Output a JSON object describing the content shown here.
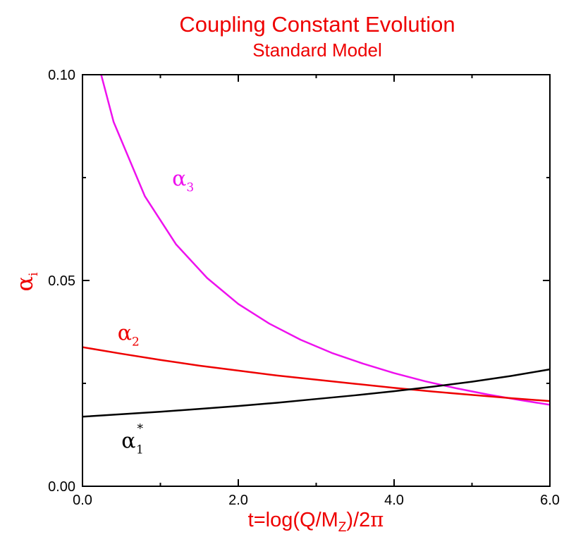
{
  "chart_data": {
    "type": "line",
    "title": "Coupling Constant Evolution",
    "subtitle": "Standard Model",
    "xlabel": {
      "prefix": "t=log(Q/M",
      "subscript": "Z",
      "suffix": ")/2",
      "pi": "π"
    },
    "ylabel": {
      "symbol": "α",
      "subscript": "i"
    },
    "xlim": [
      0,
      6
    ],
    "ylim": [
      0,
      0.1
    ],
    "x_ticks": [
      {
        "value": 0,
        "label": "0.0"
      },
      {
        "value": 2,
        "label": "2.0"
      },
      {
        "value": 4,
        "label": "4.0"
      },
      {
        "value": 6,
        "label": "6.0"
      }
    ],
    "y_ticks": [
      {
        "value": 0,
        "label": "0.00"
      },
      {
        "value": 0.05,
        "label": "0.05"
      },
      {
        "value": 0.1,
        "label": "0.10"
      }
    ],
    "x_minor_ticks": [
      1,
      3,
      5
    ],
    "y_minor_ticks": [
      0.025,
      0.075
    ],
    "grid": false,
    "legend": "none",
    "series": [
      {
        "name": "α3",
        "label_symbol": "α",
        "label_subscript": "3",
        "label_superscript": "",
        "color": "#ee11ee",
        "label_x": 1.15,
        "label_y": 0.073,
        "x": [
          0.24,
          0.4,
          0.8,
          1.2,
          1.6,
          2.0,
          2.4,
          2.8,
          3.2,
          3.6,
          4.0,
          4.4,
          4.8,
          5.2,
          5.6,
          6.0
        ],
        "y": [
          0.1,
          0.0885,
          0.0705,
          0.0588,
          0.0506,
          0.0443,
          0.0395,
          0.0356,
          0.0324,
          0.0298,
          0.0275,
          0.0255,
          0.0238,
          0.0223,
          0.021,
          0.0198
        ]
      },
      {
        "name": "α2",
        "label_symbol": "α",
        "label_subscript": "2",
        "label_superscript": "",
        "color": "#ee0000",
        "label_x": 0.45,
        "label_y": 0.0355,
        "x": [
          0.0,
          0.5,
          1.0,
          1.5,
          2.0,
          2.5,
          3.0,
          3.5,
          4.0,
          4.5,
          5.0,
          5.5,
          6.0
        ],
        "y": [
          0.0338,
          0.0322,
          0.0307,
          0.0293,
          0.0281,
          0.0269,
          0.0259,
          0.0249,
          0.0239,
          0.023,
          0.0222,
          0.0214,
          0.0207
        ]
      },
      {
        "name": "α1*",
        "label_symbol": "α",
        "label_subscript": "1",
        "label_superscript": "*",
        "color": "#000000",
        "label_x": 0.5,
        "label_y": 0.0093,
        "x": [
          0.0,
          0.5,
          1.0,
          1.5,
          2.0,
          2.5,
          3.0,
          3.5,
          4.0,
          4.5,
          5.0,
          5.5,
          6.0
        ],
        "y": [
          0.0169,
          0.0175,
          0.0181,
          0.0188,
          0.0195,
          0.0203,
          0.0212,
          0.0221,
          0.0231,
          0.0242,
          0.0254,
          0.0268,
          0.0284
        ]
      }
    ]
  },
  "colors": {
    "title": "#ee0000",
    "axis": "#000000",
    "axis_label": "#ee0000"
  }
}
